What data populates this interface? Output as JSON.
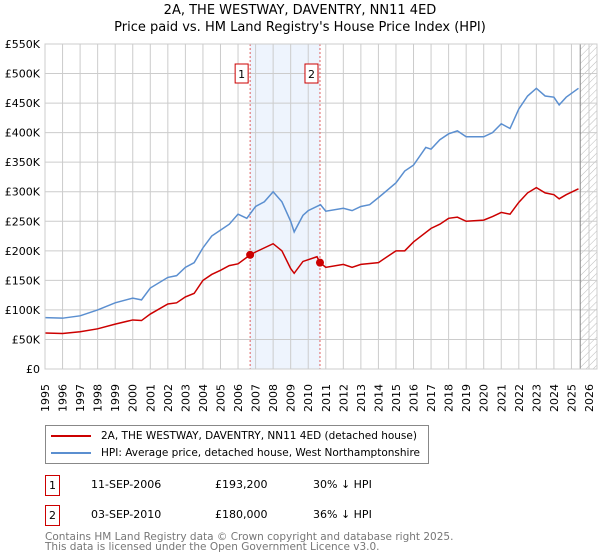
{
  "title": "2A, THE WESTWAY, DAVENTRY, NN11 4ED",
  "subtitle": "Price paid vs. HM Land Registry's House Price Index (HPI)",
  "chart_data": {
    "type": "line",
    "title": "2A, THE WESTWAY, DAVENTRY, NN11 4ED",
    "subtitle": "Price paid vs. HM Land Registry's House Price Index (HPI)",
    "xlim": [
      1995,
      2026
    ],
    "ylim": [
      0,
      550000
    ],
    "yticks": [
      0,
      50000,
      100000,
      150000,
      200000,
      250000,
      300000,
      350000,
      400000,
      450000,
      500000,
      550000
    ],
    "ytick_labels": [
      "£0",
      "£50K",
      "£100K",
      "£150K",
      "£200K",
      "£250K",
      "£300K",
      "£350K",
      "£400K",
      "£450K",
      "£500K",
      "£550K"
    ],
    "xtick_labels": [
      "1995",
      "1996",
      "1997",
      "1998",
      "1999",
      "2000",
      "2001",
      "2002",
      "2003",
      "2004",
      "2005",
      "2006",
      "2007",
      "2008",
      "2009",
      "2010",
      "2011",
      "2012",
      "2013",
      "2014",
      "2015",
      "2016",
      "2017",
      "2018",
      "2019",
      "2020",
      "2021",
      "2022",
      "2023",
      "2024",
      "2025",
      "2026"
    ],
    "grid": true,
    "forecast_hatch_from": 2025.5,
    "shaded_range": [
      2006.69,
      2010.67
    ],
    "series": [
      {
        "name": "2A, THE WESTWAY, DAVENTRY, NN11 4ED (detached house)",
        "color": "#cc0000",
        "x": [
          1995,
          1996,
          1997,
          1998,
          1999,
          2000,
          2000.5,
          2001,
          2002,
          2002.5,
          2003,
          2003.5,
          2004,
          2004.5,
          2005,
          2005.5,
          2006,
          2006.69,
          2007,
          2008,
          2008.5,
          2009,
          2009.2,
          2009.7,
          2010.5,
          2010.67,
          2011,
          2012,
          2012.5,
          2013,
          2014,
          2015,
          2015.5,
          2016,
          2017,
          2017.5,
          2018,
          2018.5,
          2019,
          2020,
          2020.5,
          2021,
          2021.5,
          2022,
          2022.5,
          2023,
          2023.5,
          2024,
          2024.3,
          2024.7,
          2025.4
        ],
        "y": [
          61000,
          60000,
          63000,
          68000,
          76000,
          83000,
          82000,
          93000,
          110000,
          112000,
          122000,
          128000,
          150000,
          160000,
          167000,
          175000,
          178000,
          193200,
          198000,
          212000,
          200000,
          170000,
          162000,
          182000,
          190000,
          180000,
          172000,
          177000,
          172000,
          177000,
          180000,
          200000,
          200000,
          215000,
          238000,
          245000,
          255000,
          257000,
          250000,
          252000,
          258000,
          265000,
          262000,
          282000,
          298000,
          307000,
          298000,
          295000,
          288000,
          295000,
          305000
        ]
      },
      {
        "name": "HPI: Average price, detached house, West Northamptonshire",
        "color": "#5b8fd0",
        "x": [
          1995,
          1996,
          1997,
          1998,
          1999,
          2000,
          2000.5,
          2001,
          2002,
          2002.5,
          2003,
          2003.5,
          2004,
          2004.5,
          2005,
          2005.5,
          2006,
          2006.5,
          2007,
          2007.5,
          2008,
          2008.5,
          2009,
          2009.2,
          2009.7,
          2010,
          2010.7,
          2011,
          2012,
          2012.5,
          2013,
          2013.5,
          2014,
          2015,
          2015.5,
          2016,
          2016.7,
          2017,
          2017.5,
          2018,
          2018.5,
          2019,
          2020,
          2020.5,
          2021,
          2021.5,
          2022,
          2022.5,
          2023,
          2023.5,
          2024,
          2024.3,
          2024.7,
          2025.4
        ],
        "y": [
          87000,
          86000,
          90000,
          100000,
          112000,
          120000,
          117000,
          137000,
          155000,
          158000,
          172000,
          180000,
          205000,
          225000,
          235000,
          245000,
          262000,
          255000,
          275000,
          283000,
          300000,
          283000,
          250000,
          232000,
          260000,
          268000,
          278000,
          267000,
          272000,
          268000,
          275000,
          278000,
          290000,
          315000,
          335000,
          345000,
          375000,
          372000,
          388000,
          398000,
          403000,
          393000,
          393000,
          400000,
          415000,
          407000,
          440000,
          462000,
          475000,
          462000,
          460000,
          447000,
          460000,
          475000
        ]
      }
    ],
    "sales": [
      {
        "label": "1",
        "x": 2006.69,
        "y": 193200
      },
      {
        "label": "2",
        "x": 2010.67,
        "y": 180000
      }
    ]
  },
  "legend": {
    "items": [
      "2A, THE WESTWAY, DAVENTRY, NN11 4ED (detached house)",
      "HPI: Average price, detached house, West Northamptonshire"
    ]
  },
  "table": [
    {
      "num": "1",
      "date": "11-SEP-2006",
      "price": "£193,200",
      "diff": "30% ↓ HPI"
    },
    {
      "num": "2",
      "date": "03-SEP-2010",
      "price": "£180,000",
      "diff": "36% ↓ HPI"
    }
  ],
  "footer": {
    "line1": "Contains HM Land Registry data © Crown copyright and database right 2025.",
    "line2": "This data is licensed under the Open Government Licence v3.0."
  }
}
